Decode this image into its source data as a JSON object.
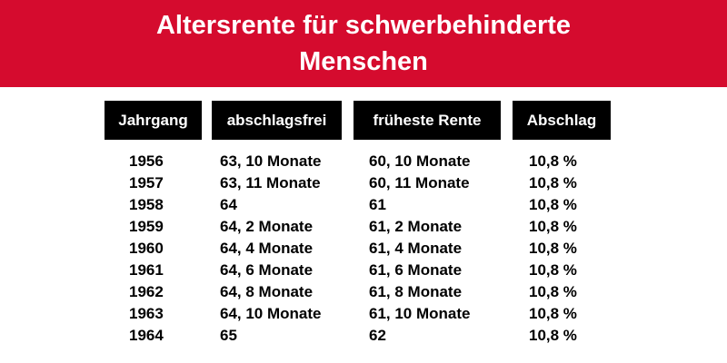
{
  "banner": {
    "title_line1": "Altersrente für schwerbehinderte",
    "title_line2": "Menschen",
    "background": "#d50b2e"
  },
  "table": {
    "headers": [
      "Jahrgang",
      "abschlagsfrei",
      "früheste Rente",
      "Abschlag"
    ],
    "rows": [
      [
        "1956",
        "63, 10 Monate",
        "60, 10 Monate",
        "10,8 %"
      ],
      [
        "1957",
        "63, 11 Monate",
        "60, 11 Monate",
        "10,8 %"
      ],
      [
        "1958",
        "64",
        "61",
        "10,8 %"
      ],
      [
        "1959",
        "64, 2 Monate",
        "61, 2 Monate",
        "10,8 %"
      ],
      [
        "1960",
        "64, 4 Monate",
        "61, 4 Monate",
        "10,8 %"
      ],
      [
        "1961",
        "64, 6 Monate",
        "61, 6 Monate",
        "10,8 %"
      ],
      [
        "1962",
        "64, 8 Monate",
        "61, 8 Monate",
        "10,8 %"
      ],
      [
        "1963",
        "64, 10 Monate",
        "61, 10 Monate",
        "10,8 %"
      ],
      [
        "1964",
        "65",
        "62",
        "10,8 %"
      ]
    ]
  }
}
